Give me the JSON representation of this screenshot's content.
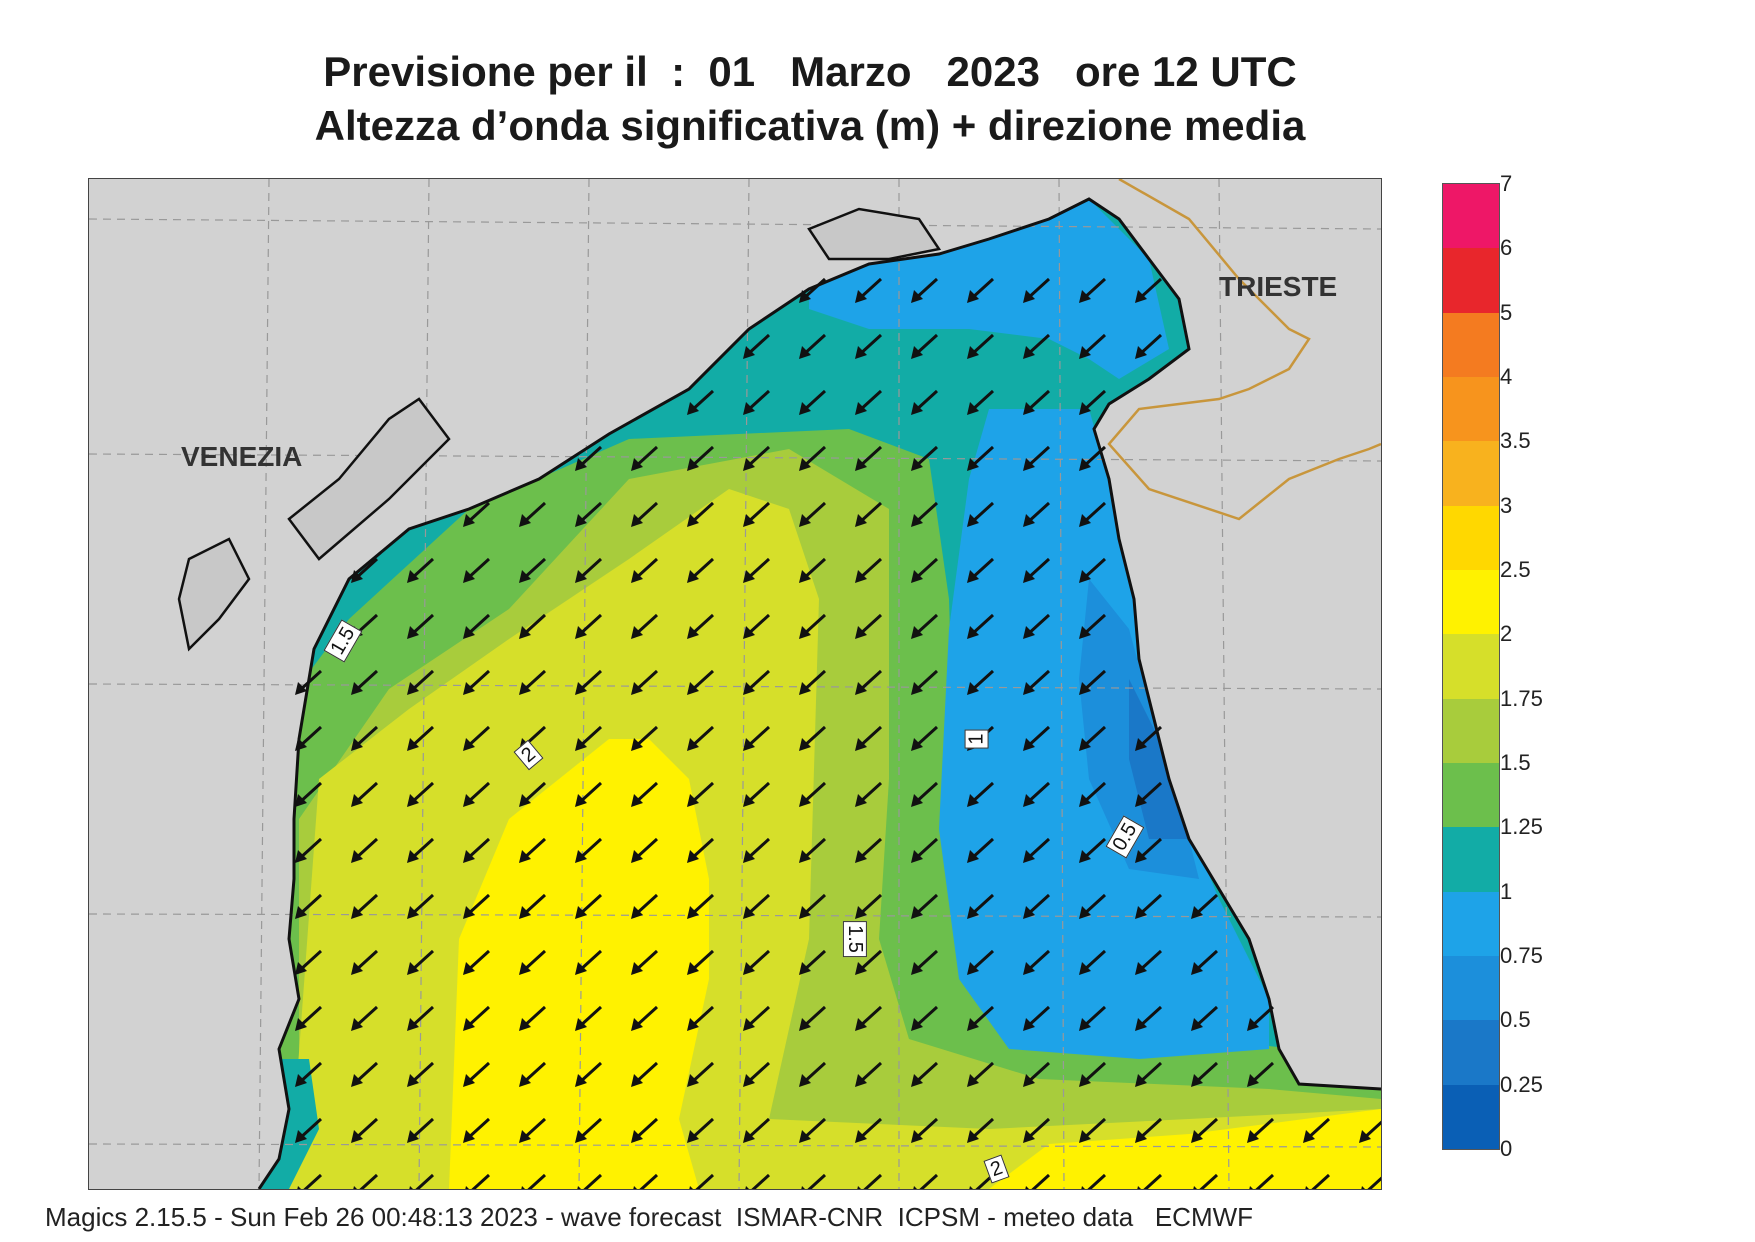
{
  "title": {
    "line1": "Previsione per il  :  01   Marzo   2023   ore 12 UTC",
    "line2": "Altezza d’onda significativa (m) + direzione media"
  },
  "map": {
    "cities": [
      {
        "name": "VENEZIA"
      },
      {
        "name": "TRIESTE"
      }
    ],
    "contour_labels": [
      "1.5",
      "2",
      "1",
      "0.5",
      "1.5",
      "2"
    ],
    "land_color": "#d2d2d2",
    "coast_color": "#111111",
    "border_color": "#c8963c",
    "arrow_direction": "south-west"
  },
  "legend": {
    "levels": [
      "0",
      "0.25",
      "0.5",
      "0.75",
      "1",
      "1.25",
      "1.5",
      "1.75",
      "2",
      "2.5",
      "3",
      "3.5",
      "4",
      "5",
      "6",
      "7"
    ],
    "colors": [
      "#0a5fb5",
      "#1a78c8",
      "#1c8fdb",
      "#1ea3e8",
      "#12aca6",
      "#6cbf4c",
      "#a8cc3c",
      "#d6df2a",
      "#fff200",
      "#ffd800",
      "#f8b21e",
      "#f7941d",
      "#f47b20",
      "#e8262c",
      "#ee1767"
    ]
  },
  "footer": "Magics 2.15.5 - Sun Feb 26 00:48:13 2023 - wave forecast  ISMAR-CNR  ICPSM - meteo data   ECMWF"
}
